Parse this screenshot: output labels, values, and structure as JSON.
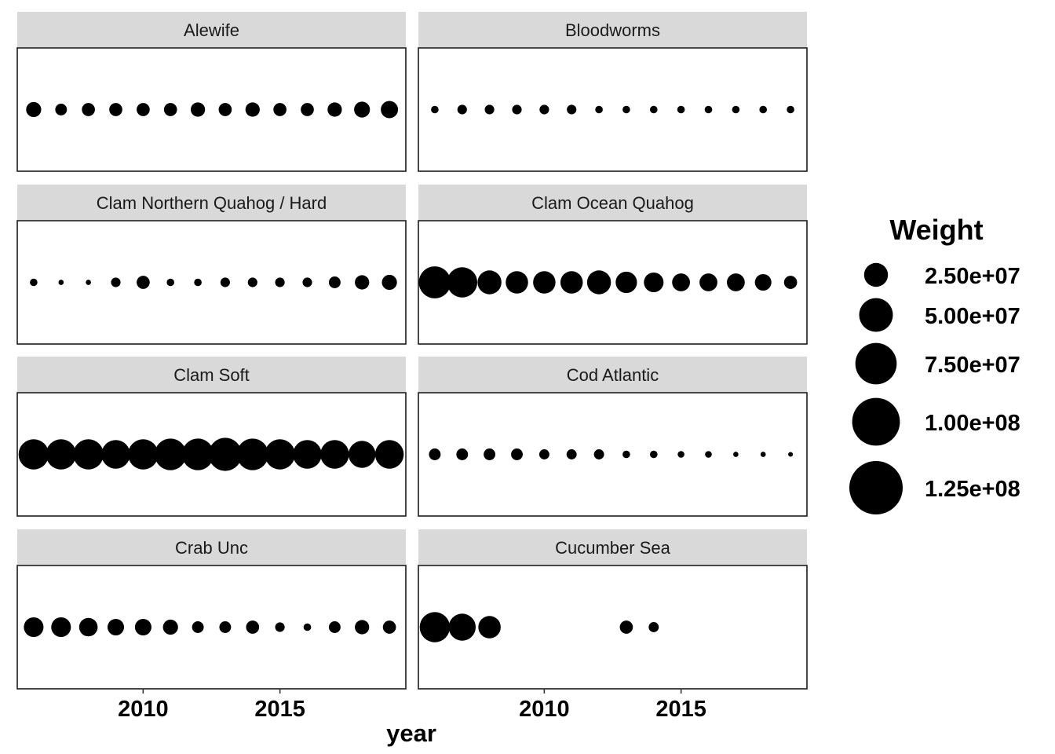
{
  "chart_data": {
    "type": "scatter",
    "facet_layout": "4 rows x 2 columns",
    "xlabel": "year",
    "ylabel": "",
    "x_ticks": [
      2010,
      2015
    ],
    "xlim": [
      2005.4,
      2019.6
    ],
    "x": [
      2006,
      2007,
      2008,
      2009,
      2010,
      2011,
      2012,
      2013,
      2014,
      2015,
      2016,
      2017,
      2018,
      2019
    ],
    "size_legend": {
      "title": "Weight",
      "position": "right",
      "breaks": [
        25000000,
        50000000,
        75000000,
        100000000,
        125000000
      ],
      "labels": [
        "2.50e+07",
        "5.00e+07",
        "7.50e+07",
        "1.00e+08",
        "1.25e+08"
      ]
    },
    "panels": [
      {
        "name": "Alewife",
        "values": [
          10000000,
          6000000,
          7500000,
          7500000,
          7500000,
          7500000,
          9000000,
          7500000,
          9000000,
          7500000,
          7500000,
          9000000,
          11000000,
          13000000
        ]
      },
      {
        "name": "Bloodworms",
        "values": [
          2500000,
          4000000,
          4000000,
          4000000,
          4000000,
          4000000,
          2500000,
          2500000,
          2500000,
          2500000,
          2500000,
          2500000,
          2500000,
          2500000
        ]
      },
      {
        "name": "Clam Northern Quahog / Hard",
        "values": [
          2500000,
          1200000,
          1200000,
          4000000,
          7500000,
          2500000,
          2500000,
          4000000,
          4000000,
          4000000,
          4000000,
          6000000,
          9000000,
          10000000
        ]
      },
      {
        "name": "Clam Ocean Quahog",
        "values": [
          45000000,
          40000000,
          25000000,
          22000000,
          22000000,
          22000000,
          25000000,
          20000000,
          17000000,
          14000000,
          14000000,
          14000000,
          12000000,
          7500000
        ]
      },
      {
        "name": "Clam Soft",
        "values": [
          40000000,
          40000000,
          40000000,
          36000000,
          40000000,
          44000000,
          44000000,
          48000000,
          44000000,
          40000000,
          36000000,
          36000000,
          32000000,
          36000000
        ]
      },
      {
        "name": "Cod Atlantic",
        "values": [
          6000000,
          6000000,
          6000000,
          6000000,
          4500000,
          4500000,
          4500000,
          2500000,
          2500000,
          2000000,
          2000000,
          1200000,
          1200000,
          1000000
        ]
      },
      {
        "name": "Crab Unc",
        "values": [
          17000000,
          17000000,
          15000000,
          12000000,
          12000000,
          10000000,
          6000000,
          6000000,
          7500000,
          4000000,
          2500000,
          6000000,
          9000000,
          7500000
        ]
      },
      {
        "name": "Cucumber Sea",
        "values": [
          40000000,
          32000000,
          22000000,
          null,
          null,
          null,
          null,
          7500000,
          4500000,
          null,
          null,
          null,
          null,
          null
        ]
      }
    ]
  }
}
